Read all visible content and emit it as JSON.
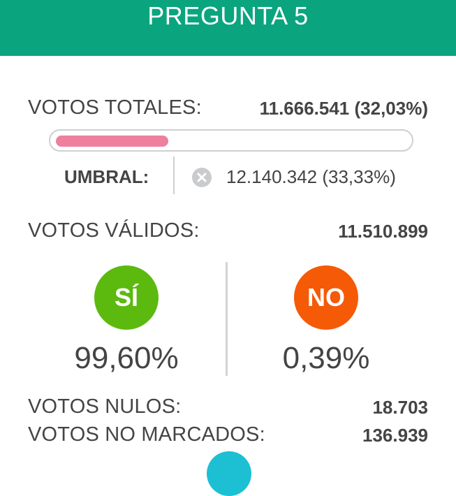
{
  "header": {
    "title": "PREGUNTA 5"
  },
  "totales": {
    "label": "VOTOS TOTALES:",
    "value": "11.666.541  (32,03%)",
    "progress_percent": 32.03
  },
  "umbral": {
    "label": "UMBRAL:",
    "value": "12.140.342 (33,33%)",
    "icon": "x-circle-icon"
  },
  "validos": {
    "label": "VOTOS VÁLIDOS:",
    "value": "11.510.899"
  },
  "si": {
    "badge": "SÍ",
    "percent": "99,60%",
    "color": "#5cba0f"
  },
  "no": {
    "badge": "NO",
    "percent": "0,39%",
    "color": "#f55a06"
  },
  "nulos": {
    "label": "VOTOS NULOS:",
    "value": "18.703"
  },
  "no_marcados": {
    "label": "VOTOS NO MARCADOS:",
    "value": "136.939"
  },
  "colors": {
    "header": "#0aa57f",
    "progress": "#ee7f9e"
  }
}
